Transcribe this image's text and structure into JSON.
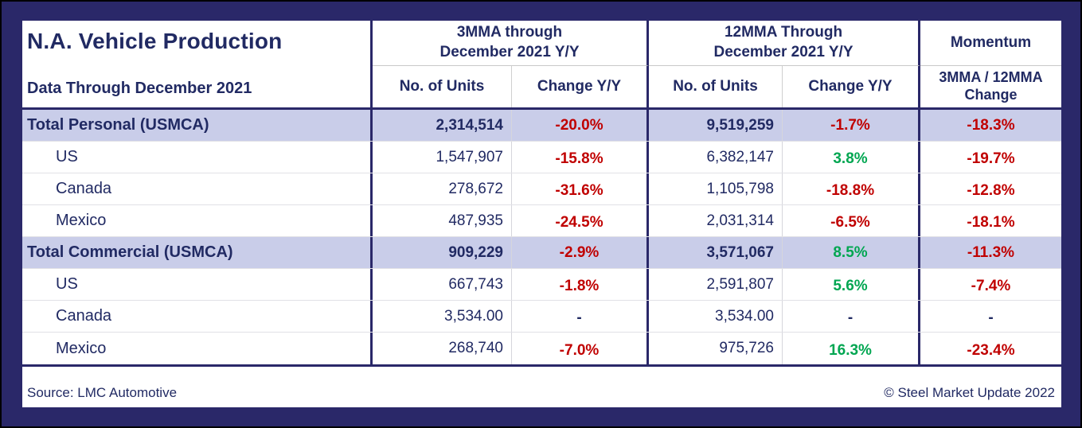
{
  "colors": {
    "navy": "#212a63",
    "red": "#c00000",
    "green": "#00a651",
    "highlight": "#c9cde9",
    "frame": "#2a2869"
  },
  "table": {
    "title": "N.A. Vehicle Production",
    "subtitle": "Data Through December 2021",
    "groups": {
      "g3": "3MMA through\nDecember 2021 Y/Y",
      "g12": "12MMA Through\nDecember 2021  Y/Y",
      "momentum": "Momentum"
    },
    "subheaders": {
      "units3": "No. of Units",
      "change3": "Change Y/Y",
      "units12": "No. of Units",
      "change12": "Change Y/Y",
      "momentum": "3MMA / 12MMA\nChange"
    },
    "rows": [
      {
        "label": "Total Personal (USMCA)",
        "level": "total",
        "units3": "2,314,514",
        "change3": "-20.0%",
        "change3_color": "red",
        "units12": "9,519,259",
        "change12": "-1.7%",
        "change12_color": "red",
        "momentum": "-18.3%",
        "momentum_color": "red"
      },
      {
        "label": "US",
        "level": "sub",
        "units3": "1,547,907",
        "change3": "-15.8%",
        "change3_color": "red",
        "units12": "6,382,147",
        "change12": "3.8%",
        "change12_color": "green",
        "momentum": "-19.7%",
        "momentum_color": "red"
      },
      {
        "label": "Canada",
        "level": "sub",
        "units3": "278,672",
        "change3": "-31.6%",
        "change3_color": "red",
        "units12": "1,105,798",
        "change12": "-18.8%",
        "change12_color": "red",
        "momentum": "-12.8%",
        "momentum_color": "red"
      },
      {
        "label": "Mexico",
        "level": "sub",
        "units3": "487,935",
        "change3": "-24.5%",
        "change3_color": "red",
        "units12": "2,031,314",
        "change12": "-6.5%",
        "change12_color": "red",
        "momentum": "-18.1%",
        "momentum_color": "red"
      },
      {
        "label": "Total Commercial (USMCA)",
        "level": "total",
        "units3": "909,229",
        "change3": "-2.9%",
        "change3_color": "red",
        "units12": "3,571,067",
        "change12": "8.5%",
        "change12_color": "green",
        "momentum": "-11.3%",
        "momentum_color": "red"
      },
      {
        "label": "US",
        "level": "sub",
        "units3": "667,743",
        "change3": "-1.8%",
        "change3_color": "red",
        "units12": "2,591,807",
        "change12": "5.6%",
        "change12_color": "green",
        "momentum": "-7.4%",
        "momentum_color": "red"
      },
      {
        "label": "Canada",
        "level": "sub",
        "units3": "3,534.00",
        "change3": "-",
        "change3_color": "navy",
        "units12": "3,534.00",
        "change12": "-",
        "change12_color": "navy",
        "momentum": "-",
        "momentum_color": "navy"
      },
      {
        "label": "Mexico",
        "level": "sub",
        "units3": "268,740",
        "change3": "-7.0%",
        "change3_color": "red",
        "units12": "975,726",
        "change12": "16.3%",
        "change12_color": "green",
        "momentum": "-23.4%",
        "momentum_color": "red"
      }
    ]
  },
  "footer": {
    "source": "Source: LMC Automotive",
    "copyright": "© Steel Market Update 2022"
  },
  "chart_data": {
    "type": "table",
    "title": "N.A. Vehicle Production",
    "subtitle": "Data Through December 2021",
    "columns": [
      "3MMA No. of Units",
      "3MMA Change Y/Y %",
      "12MMA No. of Units",
      "12MMA Change Y/Y %",
      "Momentum 3MMA/12MMA Change %"
    ],
    "rows": [
      {
        "label": "Total Personal (USMCA)",
        "units_3mma": 2314514,
        "change_3mma_pct": -20.0,
        "units_12mma": 9519259,
        "change_12mma_pct": -1.7,
        "momentum_pct": -18.3
      },
      {
        "label": "US (Personal)",
        "units_3mma": 1547907,
        "change_3mma_pct": -15.8,
        "units_12mma": 6382147,
        "change_12mma_pct": 3.8,
        "momentum_pct": -19.7
      },
      {
        "label": "Canada (Personal)",
        "units_3mma": 278672,
        "change_3mma_pct": -31.6,
        "units_12mma": 1105798,
        "change_12mma_pct": -18.8,
        "momentum_pct": -12.8
      },
      {
        "label": "Mexico (Personal)",
        "units_3mma": 487935,
        "change_3mma_pct": -24.5,
        "units_12mma": 2031314,
        "change_12mma_pct": -6.5,
        "momentum_pct": -18.1
      },
      {
        "label": "Total Commercial (USMCA)",
        "units_3mma": 909229,
        "change_3mma_pct": -2.9,
        "units_12mma": 3571067,
        "change_12mma_pct": 8.5,
        "momentum_pct": -11.3
      },
      {
        "label": "US (Commercial)",
        "units_3mma": 667743,
        "change_3mma_pct": -1.8,
        "units_12mma": 2591807,
        "change_12mma_pct": 5.6,
        "momentum_pct": -7.4
      },
      {
        "label": "Canada (Commercial)",
        "units_3mma": 3534.0,
        "change_3mma_pct": null,
        "units_12mma": 3534.0,
        "change_12mma_pct": null,
        "momentum_pct": null
      },
      {
        "label": "Mexico (Commercial)",
        "units_3mma": 268740,
        "change_3mma_pct": -7.0,
        "units_12mma": 975726,
        "change_12mma_pct": 16.3,
        "momentum_pct": -23.4
      }
    ]
  }
}
